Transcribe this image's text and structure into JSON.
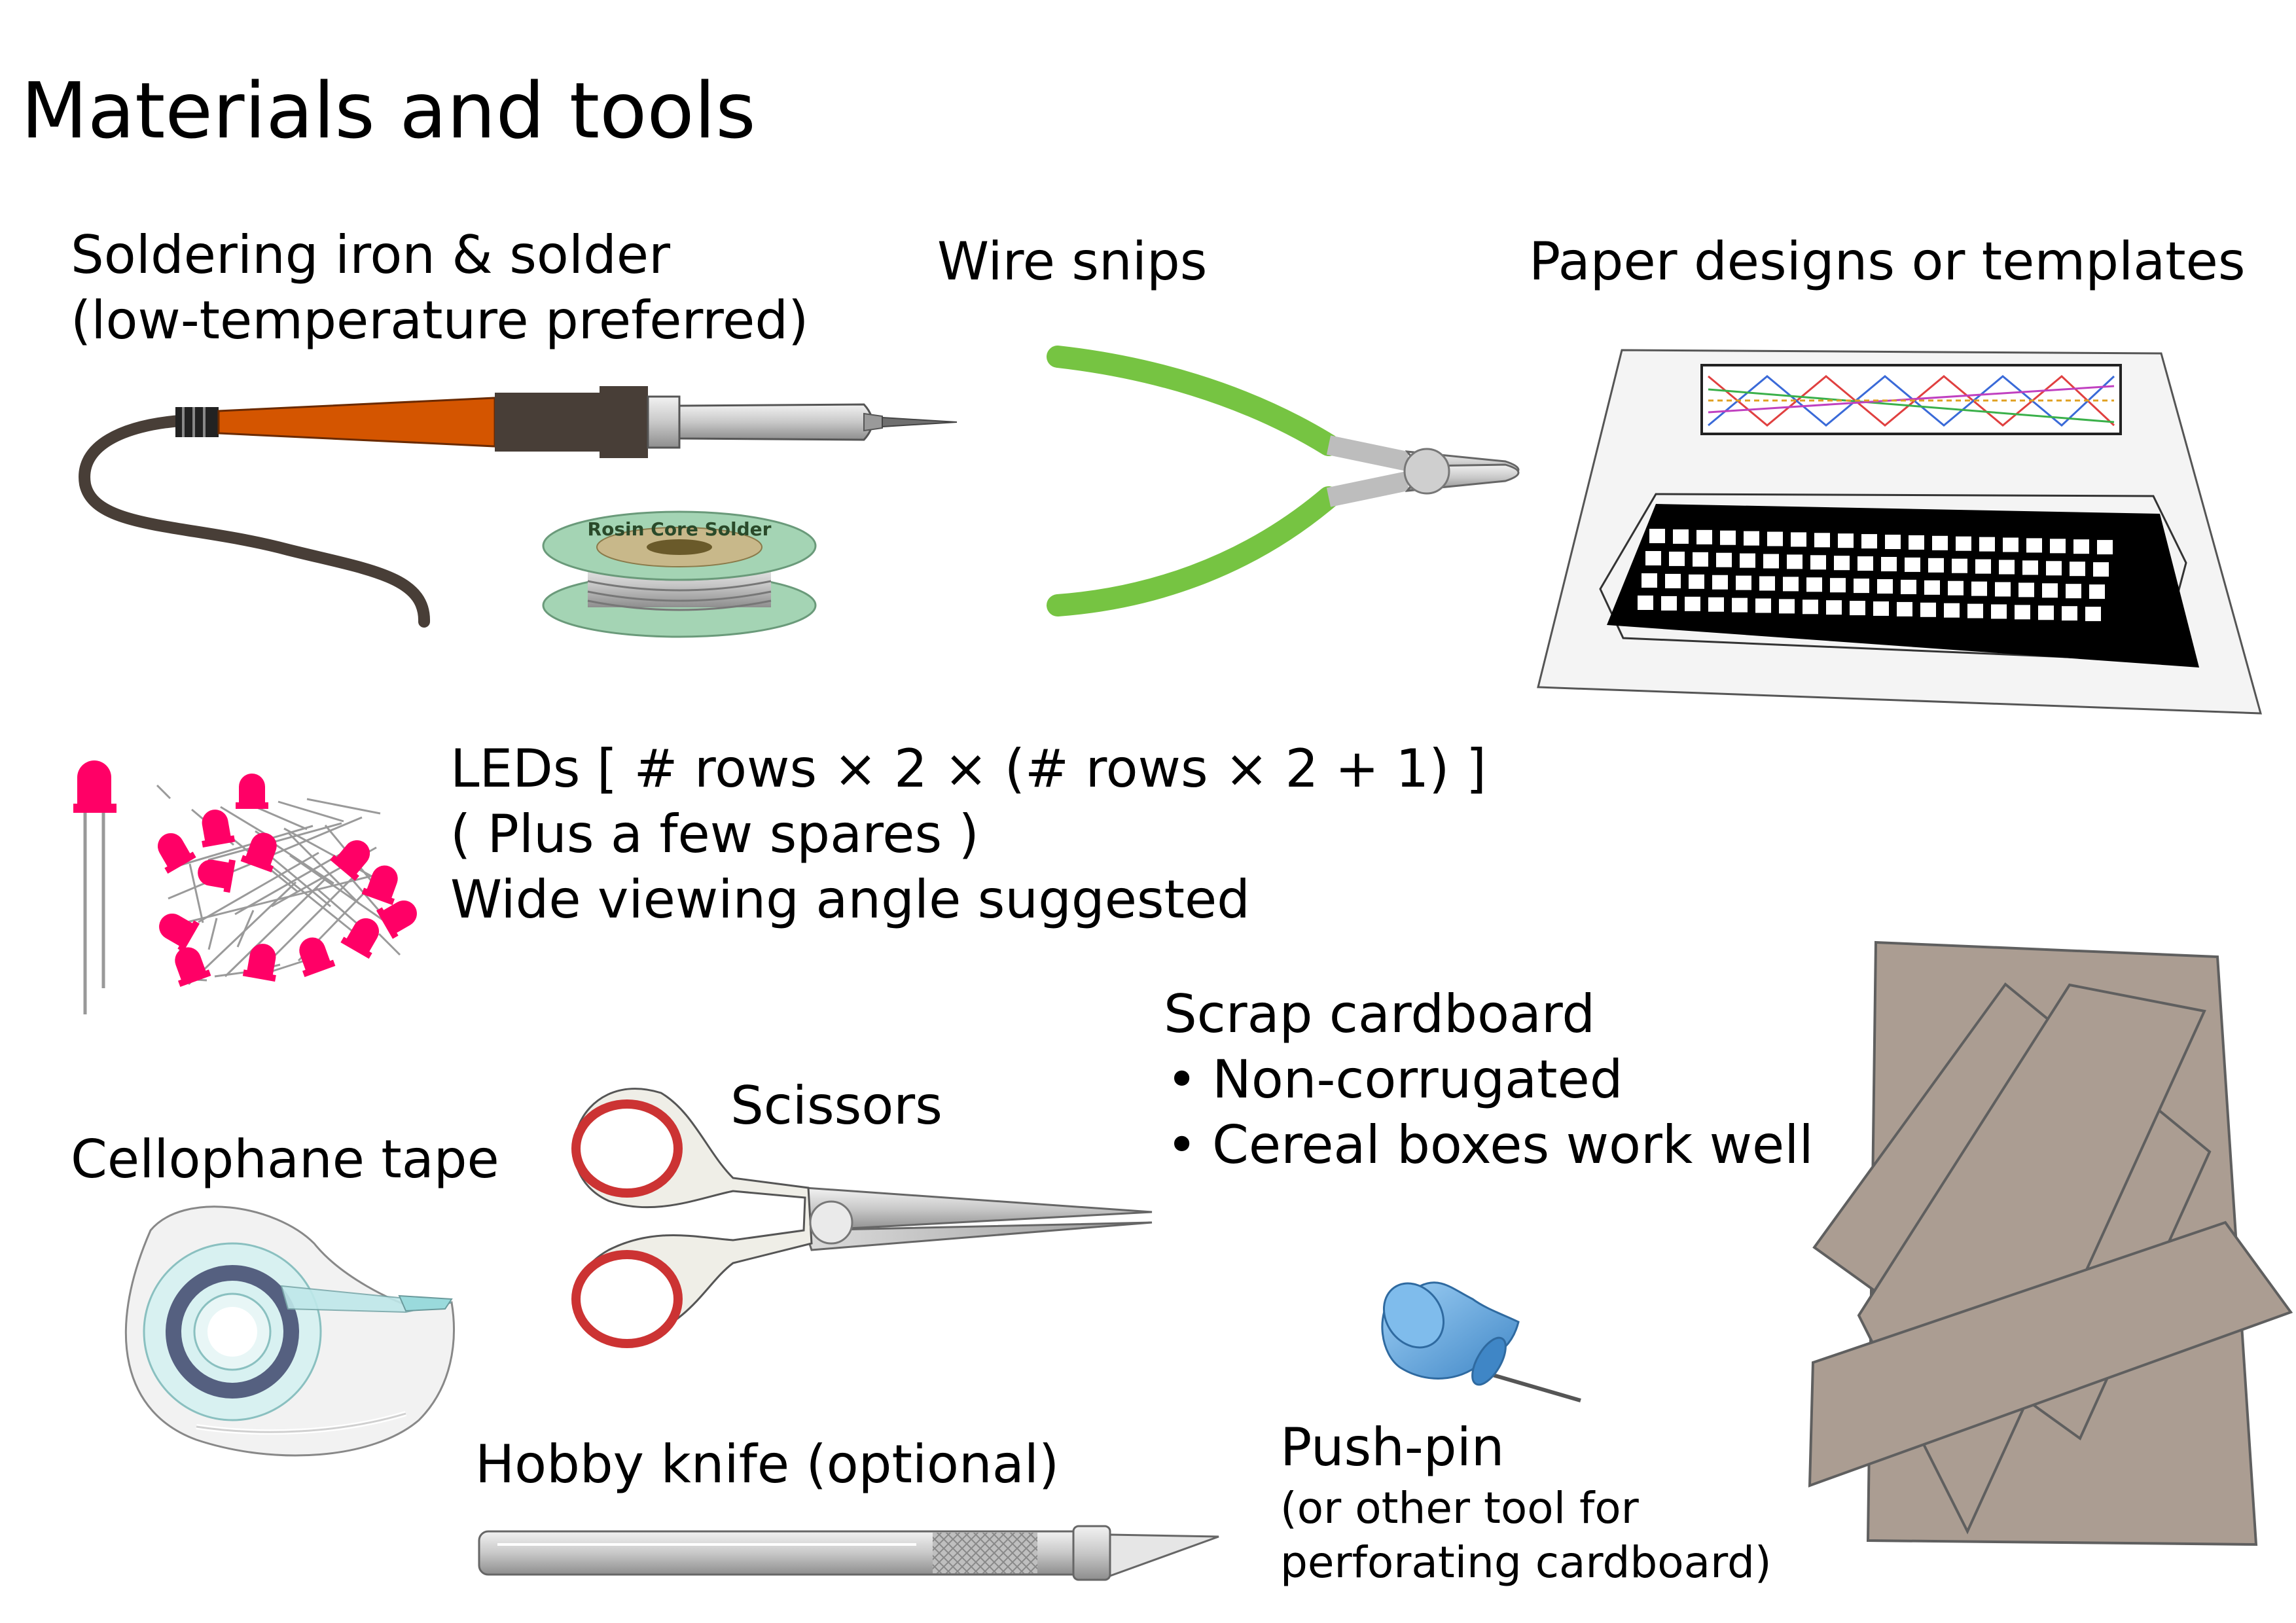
{
  "title": "Materials and tools",
  "soldering": {
    "line1": "Soldering iron & solder",
    "line2": "(low-temperature preferred)",
    "spool_text": "Rosin Core Solder"
  },
  "wire_snips": {
    "label": "Wire snips"
  },
  "paper": {
    "label": "Paper designs or templates"
  },
  "leds": {
    "line1": "LEDs  [ # rows × 2 × (# rows × 2 + 1) ]",
    "line2": "( Plus a few spares )",
    "line3": "Wide viewing angle suggested"
  },
  "cardboard": {
    "label": "Scrap cardboard",
    "bullet1": "Non-corrugated",
    "bullet2": "Cereal boxes work well"
  },
  "scissors": {
    "label": "Scissors"
  },
  "tape": {
    "label": "Cellophane tape"
  },
  "knife": {
    "label": "Hobby knife (optional)"
  },
  "pushpin": {
    "label": "Push-pin",
    "line2": "(or other tool for",
    "line3": "perforating cardboard)"
  },
  "colors": {
    "led": "#ff0066",
    "snips_handle": "#76c442",
    "cardboard": "#ab9d92",
    "iron_handle": "#d45500",
    "spool": "#a4d4b4",
    "pin": "#5aa0d8"
  }
}
